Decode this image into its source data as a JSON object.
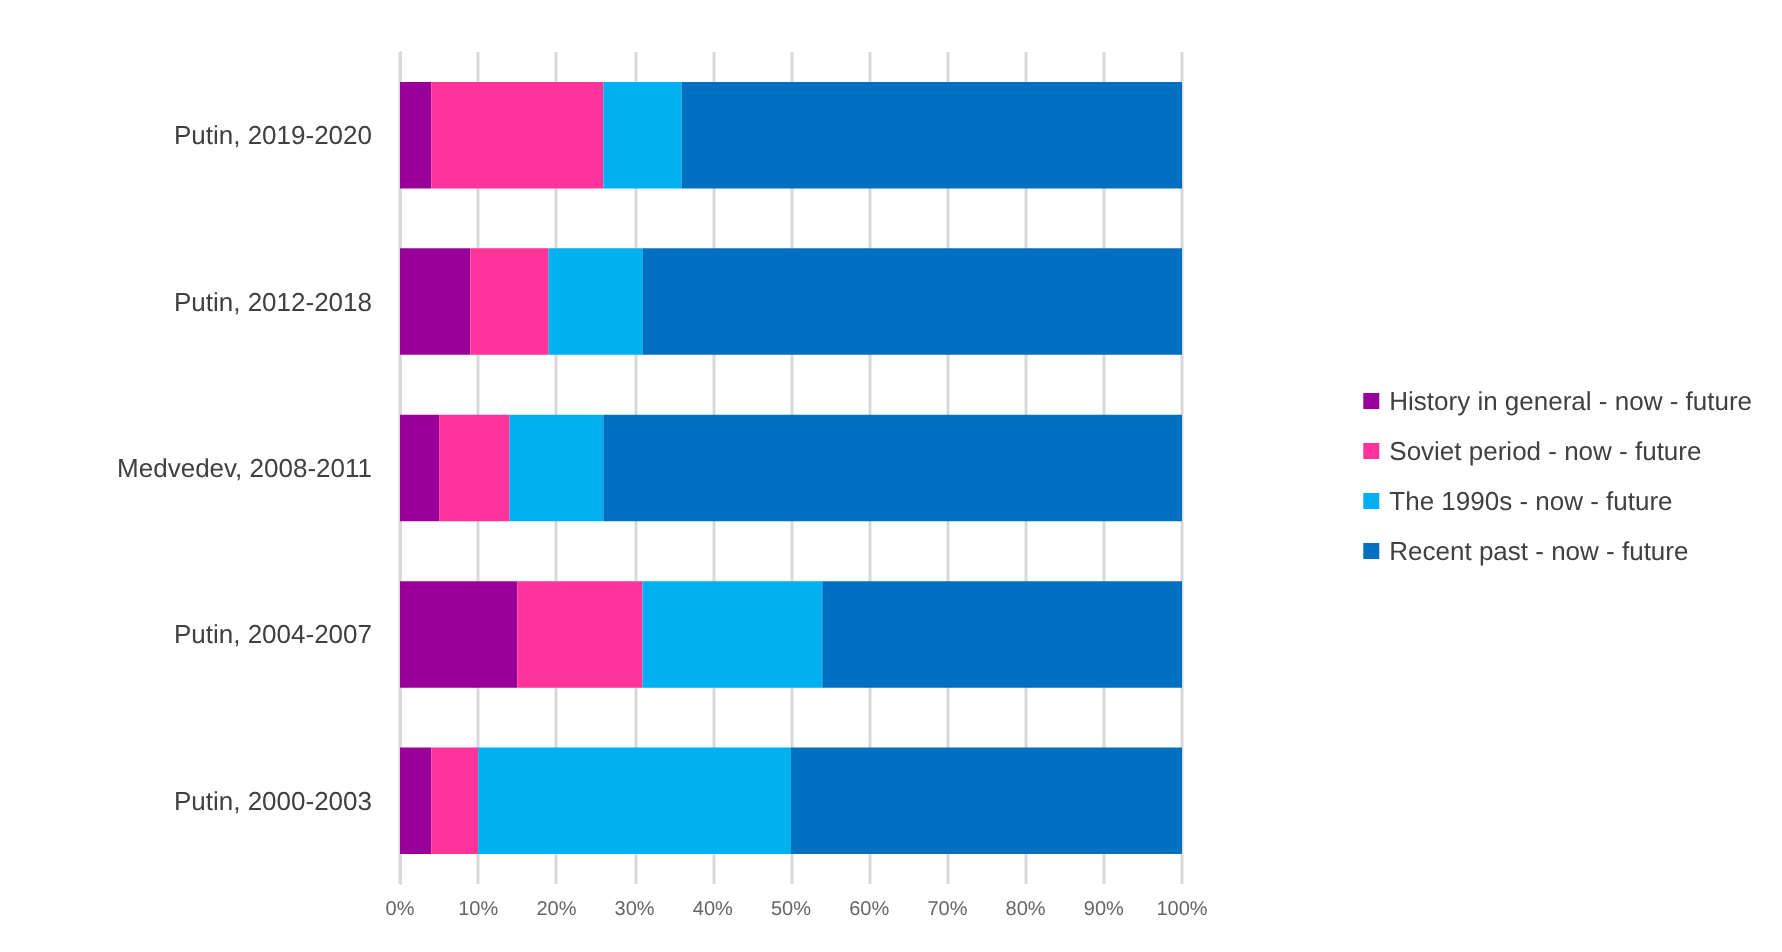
{
  "chart_data": {
    "type": "bar",
    "orientation": "horizontal",
    "stacked": true,
    "categories": [
      "Putin, 2019-2020",
      "Putin, 2012-2018",
      "Medvedev, 2008-2011",
      "Putin, 2004-2007",
      "Putin, 2000-2003"
    ],
    "series": [
      {
        "name": "History in general - now - future",
        "color": "#990099",
        "values": [
          4,
          9,
          5,
          15,
          4
        ]
      },
      {
        "name": "Soviet period - now - future",
        "color": "#ff3399",
        "values": [
          22,
          10,
          9,
          16,
          6
        ]
      },
      {
        "name": "The 1990s - now - future",
        "color": "#00b0f0",
        "values": [
          10,
          12,
          12,
          23,
          40
        ]
      },
      {
        "name": "Recent past - now - future",
        "color": "#0070c0",
        "values": [
          64,
          69,
          74,
          46,
          50
        ]
      }
    ],
    "xlim": [
      0,
      100
    ],
    "xticks": [
      {
        "value": 0,
        "label": "0%"
      },
      {
        "value": 10,
        "label": "10%"
      },
      {
        "value": 20,
        "label": "20%"
      },
      {
        "value": 30,
        "label": "30%"
      },
      {
        "value": 40,
        "label": "40%"
      },
      {
        "value": 50,
        "label": "50%"
      },
      {
        "value": 60,
        "label": "60%"
      },
      {
        "value": 70,
        "label": "70%"
      },
      {
        "value": 80,
        "label": "80%"
      },
      {
        "value": 90,
        "label": "90%"
      },
      {
        "value": 100,
        "label": "100%"
      }
    ],
    "grid": "x",
    "legend": "right"
  }
}
